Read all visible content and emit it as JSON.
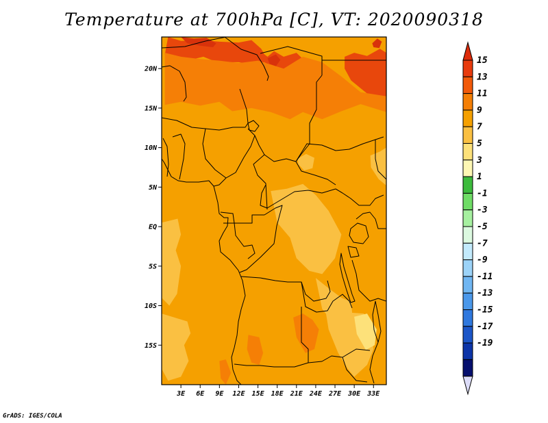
{
  "title": "Temperature at 700hPa [C], VT: 2020090318",
  "footer": "GrADS: IGES/COLA",
  "map": {
    "lon_range": [
      0,
      35
    ],
    "lat_range": [
      -20,
      24
    ],
    "lat_ticks": [
      {
        "value": 20,
        "label": "20N"
      },
      {
        "value": 15,
        "label": "15N"
      },
      {
        "value": 10,
        "label": "10N"
      },
      {
        "value": 5,
        "label": "5N"
      },
      {
        "value": 0,
        "label": "EQ"
      },
      {
        "value": -5,
        "label": "5S"
      },
      {
        "value": -10,
        "label": "10S"
      },
      {
        "value": -15,
        "label": "15S"
      }
    ],
    "lon_ticks": [
      {
        "value": 3,
        "label": "3E"
      },
      {
        "value": 6,
        "label": "6E"
      },
      {
        "value": 9,
        "label": "9E"
      },
      {
        "value": 12,
        "label": "12E"
      },
      {
        "value": 15,
        "label": "15E"
      },
      {
        "value": 18,
        "label": "18E"
      },
      {
        "value": 21,
        "label": "21E"
      },
      {
        "value": 24,
        "label": "24E"
      },
      {
        "value": 27,
        "label": "27E"
      },
      {
        "value": 30,
        "label": "30E"
      },
      {
        "value": 33,
        "label": "33E"
      }
    ],
    "base_color": "#f5a000"
  },
  "colorbar": {
    "levels": [
      {
        "label": "15",
        "color": "#e83b0e"
      },
      {
        "label": "13",
        "color": "#f25a0a"
      },
      {
        "label": "11",
        "color": "#f57f06"
      },
      {
        "label": "9",
        "color": "#f5a000"
      },
      {
        "label": "7",
        "color": "#fac042"
      },
      {
        "label": "5",
        "color": "#fde17a"
      },
      {
        "label": "3",
        "color": "#fdf7b4"
      },
      {
        "label": "1",
        "color": "#3dbb3d"
      },
      {
        "label": "-1",
        "color": "#6fdc66"
      },
      {
        "label": "-3",
        "color": "#a6f0a0"
      },
      {
        "label": "-5",
        "color": "#dcf9e0"
      },
      {
        "label": "-7",
        "color": "#c3eafc"
      },
      {
        "label": "-9",
        "color": "#9cd3f8"
      },
      {
        "label": "-11",
        "color": "#70b6f2"
      },
      {
        "label": "-13",
        "color": "#4b98ea"
      },
      {
        "label": "-15",
        "color": "#2f78de"
      },
      {
        "label": "-17",
        "color": "#1c56c8"
      },
      {
        "label": "-19",
        "color": "#0d35a8"
      },
      {
        "label": "",
        "color": "#06106e"
      }
    ],
    "top_arrow_color": "#dd2b0a",
    "bottom_arrow_color": "#dcdcf8"
  },
  "field_patches": [
    {
      "color": "#e8470c",
      "level": 13,
      "lons": [
        1,
        3,
        6,
        9,
        12,
        14,
        15.5,
        16,
        16.5,
        17.5,
        19,
        21,
        22,
        21.5,
        19,
        18,
        16,
        14,
        12,
        10,
        8,
        6.5,
        5,
        3,
        1.5,
        0.5
      ],
      "lats": [
        24,
        23.5,
        23.6,
        23.4,
        23.3,
        23.6,
        22.5,
        21.8,
        21.5,
        22.2,
        21.5,
        22,
        21.2,
        20,
        19.2,
        19.8,
        20.8,
        20.5,
        20.8,
        20.8,
        21,
        21.5,
        21.2,
        21.4,
        21.1,
        21.8
      ]
    },
    {
      "color": "#e8470c",
      "level": 13,
      "lons": [
        28.5,
        30,
        32,
        34,
        35,
        35,
        33,
        31,
        29.5,
        28.5
      ],
      "lats": [
        21.5,
        22,
        21.6,
        22.5,
        22,
        16.5,
        16.2,
        17.5,
        18.5,
        20
      ]
    },
    {
      "color": "#d8320b",
      "level": 15,
      "lons": [
        3,
        5,
        7,
        8.5,
        8,
        6,
        4
      ],
      "lats": [
        24,
        23.8,
        23.9,
        23.2,
        22.7,
        22.9,
        23.2
      ]
    },
    {
      "color": "#d8320b",
      "level": 15,
      "lons": [
        32.8,
        33.6,
        34.3,
        33.9,
        33
      ],
      "lats": [
        23.2,
        23.8,
        23.4,
        22.6,
        22.7
      ]
    },
    {
      "color": "#d8320b",
      "level": 15,
      "lons": [
        16.5,
        17.8,
        18.5,
        17.8,
        16.8
      ],
      "lats": [
        21.3,
        21.8,
        21.1,
        20.3,
        20.6
      ]
    },
    {
      "color": "#f57f06",
      "level": 11,
      "lons": [
        0.5,
        3,
        6,
        9,
        12,
        15,
        17,
        19,
        22,
        25,
        28,
        31,
        35,
        35,
        31,
        28,
        25,
        22,
        20,
        17,
        14,
        11,
        9,
        6,
        3,
        0.5
      ],
      "lats": [
        22,
        21.5,
        21.2,
        21,
        20.7,
        21,
        20.5,
        20,
        21.5,
        20.8,
        19,
        17,
        16.5,
        14.5,
        15.5,
        14.6,
        13.6,
        14.5,
        13.6,
        14.5,
        15,
        14.6,
        15.8,
        15.3,
        15.8,
        15.4
      ]
    },
    {
      "color": "#f57f06",
      "level": 11,
      "lons": [
        20.5,
        22,
        23.5,
        24.5,
        23.8,
        22.4,
        21
      ],
      "lats": [
        -11.5,
        -11,
        -11.8,
        -13,
        -15.5,
        -16,
        -14
      ]
    },
    {
      "color": "#f57f06",
      "level": 11,
      "lons": [
        13.5,
        15.2,
        15.8,
        15.2,
        14,
        13.3
      ],
      "lats": [
        -13.7,
        -14,
        -16,
        -17.5,
        -17.2,
        -15.5
      ]
    },
    {
      "color": "#f57f06",
      "level": 11,
      "lons": [
        9,
        10,
        10.8,
        10,
        9.2
      ],
      "lats": [
        -17,
        -16.8,
        -18.5,
        -20,
        -19.2
      ]
    },
    {
      "color": "#fac042",
      "level": 7,
      "lons": [
        0,
        2.5,
        3,
        2.2,
        3,
        2.4,
        1.2,
        0
      ],
      "lats": [
        0.5,
        1,
        -1,
        -3,
        -5,
        -8.5,
        -10,
        -9
      ]
    },
    {
      "color": "#fac042",
      "level": 7,
      "lons": [
        0,
        2,
        4,
        4.5,
        3.5,
        4.2,
        3,
        1,
        0
      ],
      "lats": [
        -11,
        -11.5,
        -12,
        -13.5,
        -15,
        -17,
        -19,
        -19.5,
        -18
      ]
    },
    {
      "color": "#fac042",
      "level": 7,
      "lons": [
        17,
        19.5,
        22,
        24,
        26,
        28,
        27,
        25,
        23,
        21,
        20,
        18
      ],
      "lats": [
        4.5,
        4.8,
        5.4,
        4,
        2,
        -1,
        -4,
        -6,
        -5.6,
        -4,
        -1.4,
        0.5
      ]
    },
    {
      "color": "#fac042",
      "level": 7,
      "lons": [
        24,
        26,
        28,
        29.5,
        29.8,
        28.5,
        27,
        25
      ],
      "lats": [
        -6.5,
        -7.8,
        -9,
        -9.5,
        -12,
        -13.5,
        -12.5,
        -10.4
      ]
    },
    {
      "color": "#fac042",
      "level": 7,
      "lons": [
        25.5,
        28,
        31.5,
        32.5,
        33,
        32,
        30,
        29,
        27.5,
        26
      ],
      "lats": [
        -10.5,
        -10.8,
        -11,
        -13,
        -15.5,
        -17.5,
        -19,
        -18,
        -16,
        -13
      ]
    },
    {
      "color": "#fac042",
      "level": 7,
      "lons": [
        21.2,
        22.5,
        23.8,
        23.5,
        22.2,
        21.3
      ],
      "lats": [
        8.6,
        9.2,
        8.7,
        7.4,
        7.1,
        7.9
      ]
    },
    {
      "color": "#fac042",
      "level": 7,
      "lons": [
        32.5,
        34,
        35,
        35,
        33.8,
        32.6
      ],
      "lats": [
        9,
        9.5,
        10,
        5.2,
        6,
        7.5
      ]
    },
    {
      "color": "#fde17a",
      "level": 5,
      "lons": [
        30,
        32,
        33.5,
        33.2,
        31.8,
        30.4
      ],
      "lats": [
        -11.4,
        -11,
        -13,
        -15,
        -15.6,
        -13.6
      ]
    }
  ]
}
